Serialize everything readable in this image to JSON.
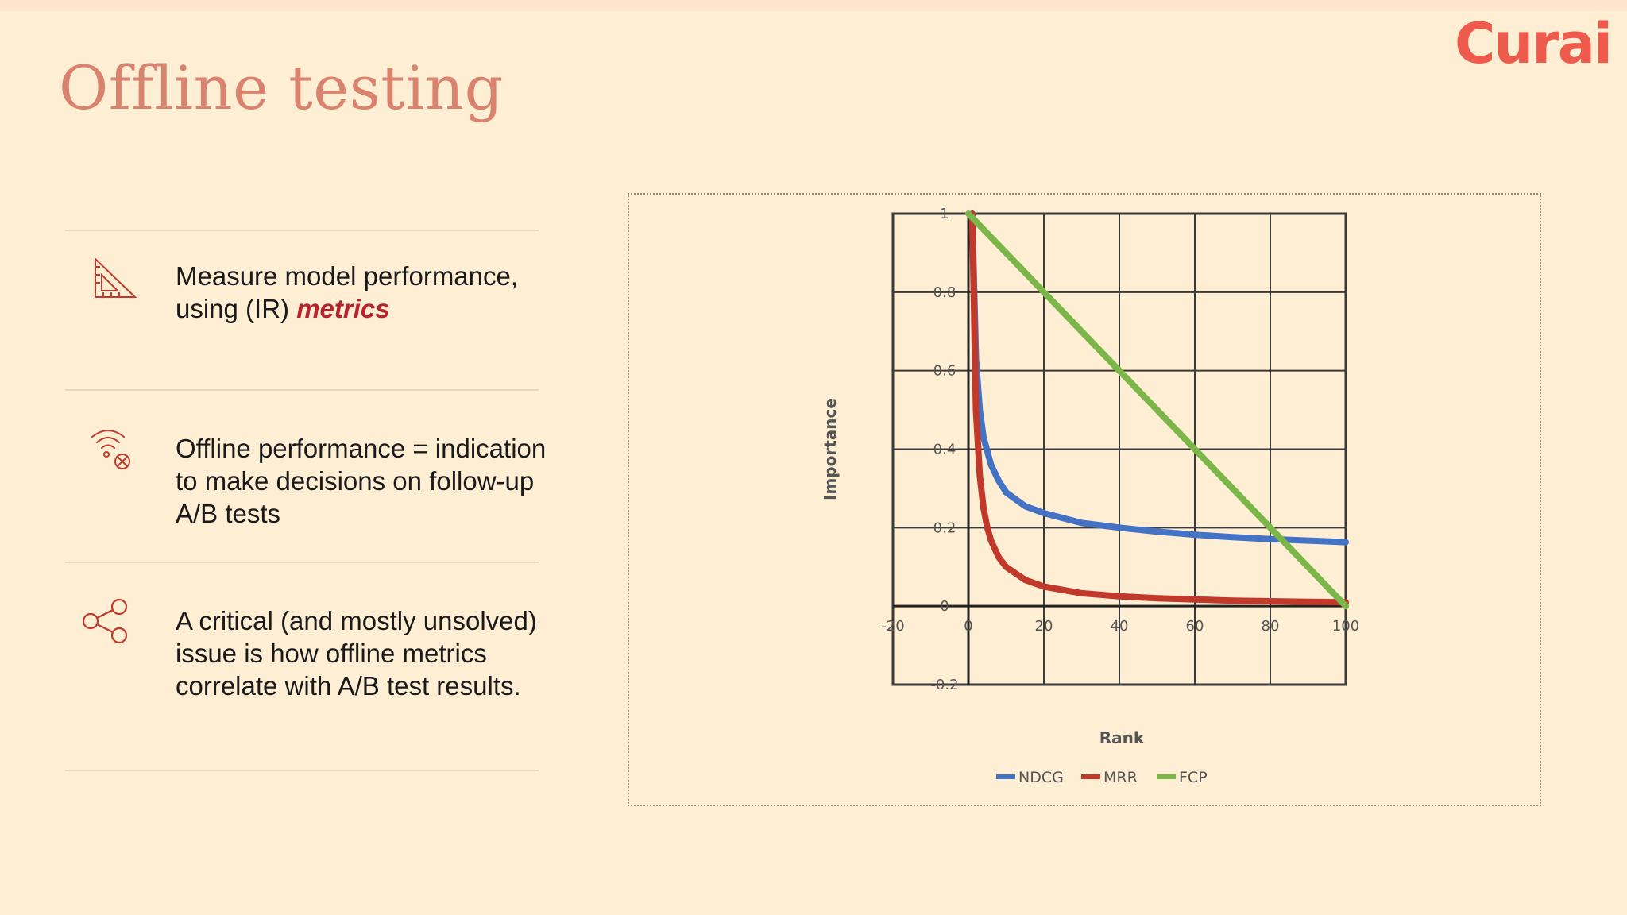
{
  "slide": {
    "title": "Offline testing",
    "logo": "Curai"
  },
  "items": [
    {
      "icon": "ruler-triangle-icon",
      "text_plain": "Measure model performance, using (IR) ",
      "text_accent": "metrics"
    },
    {
      "icon": "wifi-error-icon",
      "text_plain": "Offline performance = indication to make decisions on follow-up A/B tests"
    },
    {
      "icon": "share-icon",
      "text_plain": "A critical (and mostly unsolved) issue is how offline metrics correlate with A/B test results."
    }
  ],
  "colors": {
    "title": "#d9826e",
    "logo": "#ee5a4c",
    "accent": "#b8242e",
    "icon": "#c0392b"
  },
  "chart_data": {
    "type": "line",
    "xlabel": "Rank",
    "ylabel": "Importance",
    "xlim": [
      -20,
      100
    ],
    "ylim": [
      -0.2,
      1
    ],
    "x_ticks": [
      "-20",
      "0",
      "20",
      "40",
      "60",
      "80",
      "100"
    ],
    "y_ticks": [
      "1",
      "0.8",
      "0.6",
      "0.4",
      "0.2",
      "0",
      "-0.2"
    ],
    "grid": true,
    "legend_position": "bottom",
    "series": [
      {
        "name": "NDCG",
        "color": "#4472c4",
        "x": [
          1,
          2,
          3,
          4,
          6,
          8,
          10,
          15,
          20,
          30,
          40,
          50,
          60,
          70,
          80,
          90,
          100
        ],
        "y": [
          1.0,
          0.63,
          0.5,
          0.43,
          0.36,
          0.32,
          0.29,
          0.255,
          0.237,
          0.212,
          0.2,
          0.19,
          0.182,
          0.176,
          0.171,
          0.167,
          0.163
        ]
      },
      {
        "name": "MRR",
        "color": "#c0392b",
        "x": [
          1,
          2,
          3,
          4,
          5,
          6,
          8,
          10,
          15,
          20,
          30,
          40,
          50,
          60,
          70,
          80,
          90,
          100
        ],
        "y": [
          1.0,
          0.5,
          0.333,
          0.25,
          0.2,
          0.167,
          0.125,
          0.1,
          0.067,
          0.05,
          0.033,
          0.025,
          0.02,
          0.017,
          0.014,
          0.0125,
          0.011,
          0.01
        ]
      },
      {
        "name": "FCP",
        "color": "#7ab648",
        "x": [
          0,
          100
        ],
        "y": [
          1.0,
          0.0
        ]
      }
    ]
  }
}
